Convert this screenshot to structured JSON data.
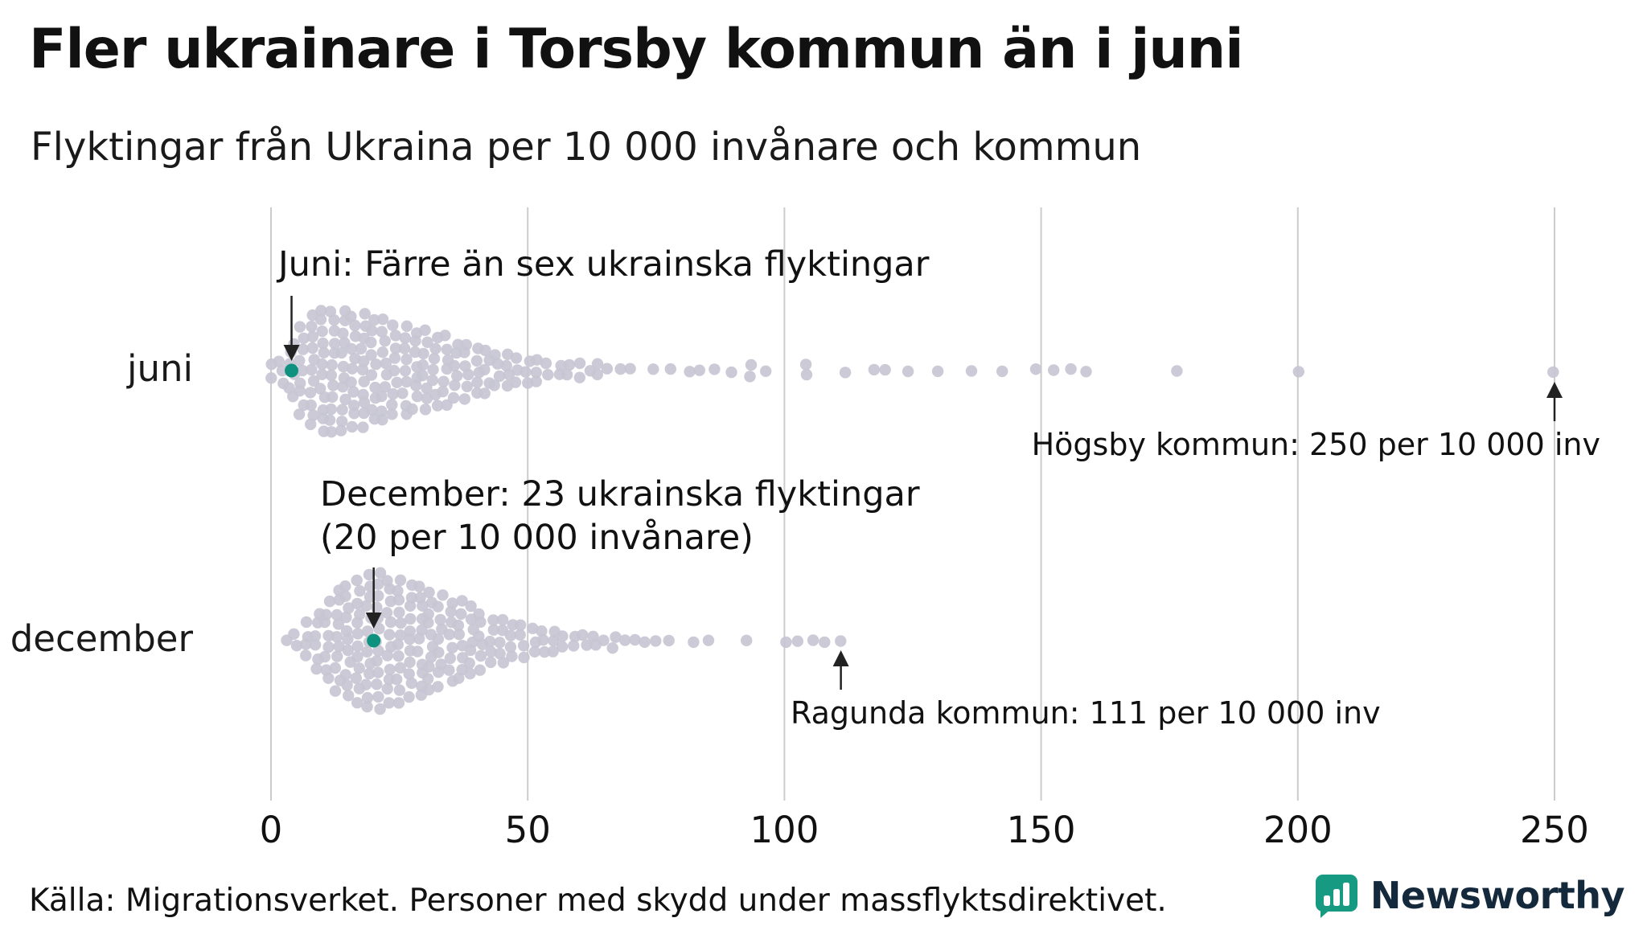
{
  "header": {
    "title": "Fler ukrainare i Torsby kommun än i juni",
    "subtitle": "Flyktingar från Ukraina per 10 000 invånare och kommun"
  },
  "chart_data": {
    "type": "beeswarm",
    "title": "Fler ukrainare i Torsby kommun än i juni",
    "subtitle": "Flyktingar från Ukraina per 10 000 invånare och kommun",
    "xlabel": "Flyktingar från Ukraina per 10 000 invånare och kommun",
    "xlim": [
      0,
      250
    ],
    "x_ticks": [
      0,
      50,
      100,
      150,
      200,
      250
    ],
    "grid": "vertical",
    "rows": [
      {
        "label": "juni",
        "highlight": {
          "municipality": "Torsby",
          "value": 4,
          "note": "Juni: Färre än sex ukrainska flyktingar"
        },
        "max": {
          "municipality": "Högsby",
          "value": 250,
          "note": "Högsby kommun: 250 per 10 000 inv"
        },
        "bins": [
          [
            0,
            2
          ],
          [
            2,
            3
          ],
          [
            4,
            6
          ],
          [
            6,
            9
          ],
          [
            8,
            11
          ],
          [
            10,
            12
          ],
          [
            12,
            12
          ],
          [
            14,
            12
          ],
          [
            16,
            11
          ],
          [
            18,
            11
          ],
          [
            20,
            10
          ],
          [
            22,
            10
          ],
          [
            24,
            9
          ],
          [
            26,
            9
          ],
          [
            28,
            8
          ],
          [
            30,
            8
          ],
          [
            32,
            7
          ],
          [
            34,
            7
          ],
          [
            36,
            6
          ],
          [
            38,
            6
          ],
          [
            40,
            5
          ],
          [
            42,
            5
          ],
          [
            44,
            4
          ],
          [
            46,
            4
          ],
          [
            48,
            3
          ],
          [
            50,
            3
          ],
          [
            52,
            3
          ],
          [
            54,
            2
          ],
          [
            56,
            2
          ],
          [
            58,
            2
          ],
          [
            60,
            2
          ],
          [
            62,
            1
          ],
          [
            64,
            2
          ],
          [
            66,
            1
          ],
          [
            68,
            1
          ],
          [
            70,
            1
          ],
          [
            74,
            1
          ],
          [
            78,
            1
          ],
          [
            81,
            1
          ],
          [
            84,
            1
          ],
          [
            86,
            1
          ],
          [
            90,
            1
          ],
          [
            93,
            2
          ],
          [
            96,
            1
          ],
          [
            104,
            2
          ],
          [
            112,
            1
          ],
          [
            117,
            1
          ],
          [
            120,
            1
          ],
          [
            124,
            1
          ],
          [
            130,
            1
          ],
          [
            136,
            1
          ],
          [
            142,
            1
          ],
          [
            149,
            1
          ],
          [
            152,
            1
          ],
          [
            156,
            1
          ],
          [
            159,
            1
          ],
          [
            176,
            1
          ],
          [
            200,
            1
          ],
          [
            250,
            1
          ]
        ]
      },
      {
        "label": "december",
        "highlight": {
          "municipality": "Torsby",
          "value": 20,
          "note": "December: 23 ukrainska flyktingar (20 per 10 000 invånare)"
        },
        "max": {
          "municipality": "Ragunda",
          "value": 111,
          "note": "Ragunda kommun: 111 per 10 000 inv"
        },
        "bins": [
          [
            3,
            1
          ],
          [
            5,
            2
          ],
          [
            7,
            4
          ],
          [
            9,
            6
          ],
          [
            11,
            8
          ],
          [
            13,
            10
          ],
          [
            15,
            11
          ],
          [
            17,
            12
          ],
          [
            19,
            13
          ],
          [
            21,
            13
          ],
          [
            23,
            12
          ],
          [
            25,
            12
          ],
          [
            27,
            11
          ],
          [
            29,
            11
          ],
          [
            31,
            10
          ],
          [
            33,
            9
          ],
          [
            35,
            8
          ],
          [
            37,
            8
          ],
          [
            39,
            7
          ],
          [
            41,
            6
          ],
          [
            43,
            5
          ],
          [
            45,
            5
          ],
          [
            47,
            4
          ],
          [
            49,
            4
          ],
          [
            51,
            3
          ],
          [
            53,
            3
          ],
          [
            55,
            3
          ],
          [
            57,
            2
          ],
          [
            59,
            2
          ],
          [
            61,
            2
          ],
          [
            63,
            2
          ],
          [
            65,
            1
          ],
          [
            67,
            2
          ],
          [
            69,
            1
          ],
          [
            71,
            1
          ],
          [
            73,
            1
          ],
          [
            75,
            1
          ],
          [
            78,
            1
          ],
          [
            82,
            1
          ],
          [
            85,
            1
          ],
          [
            93,
            1
          ],
          [
            100,
            1
          ],
          [
            103,
            1
          ],
          [
            106,
            1
          ],
          [
            108,
            1
          ],
          [
            111,
            1
          ]
        ]
      }
    ],
    "colors": {
      "dot": "#c7c5d2",
      "highlight": "#0f9180",
      "grid": "#cccccc",
      "text": "#111111",
      "arrow": "#222222"
    }
  },
  "annotations": {
    "juni": "Juni: Färre än sex ukrainska flyktingar",
    "december_line1": "December: 23 ukrainska flyktingar",
    "december_line2": "(20 per 10 000 invånare)",
    "hogsby": "Högsby kommun: 250 per 10 000 inv",
    "ragunda": "Ragunda kommun: 111 per 10 000 inv"
  },
  "footer": {
    "source": "Källa: Migrationsverket. Personer med skydd under massflyktsdirektivet."
  },
  "logo": {
    "text": "Newsworthy",
    "brand_color": "#169b82"
  }
}
